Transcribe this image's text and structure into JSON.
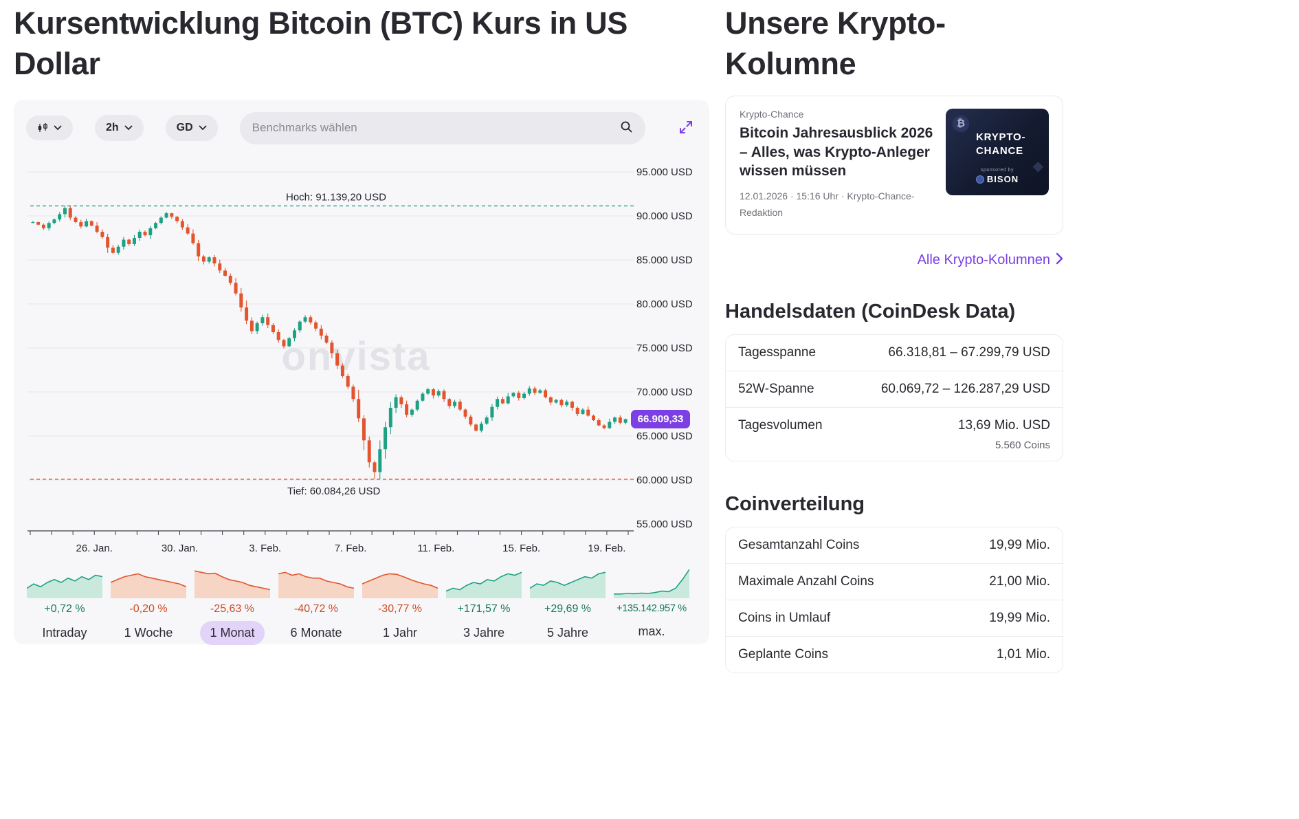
{
  "page": {
    "title": "Kursentwicklung Bitcoin (BTC) Kurs in US Dollar"
  },
  "toolbar": {
    "interval": "2h",
    "indicator": "GD",
    "search_placeholder": "Benchmarks wählen"
  },
  "chart_data": {
    "main": {
      "type": "candlestick",
      "currency": "USD",
      "watermark": "onvista",
      "ylim": [
        55000,
        95000
      ],
      "y_ticks": [
        {
          "value": 95000,
          "label": "95.000 USD"
        },
        {
          "value": 90000,
          "label": "90.000 USD"
        },
        {
          "value": 85000,
          "label": "85.000 USD"
        },
        {
          "value": 80000,
          "label": "80.000 USD"
        },
        {
          "value": 75000,
          "label": "75.000 USD"
        },
        {
          "value": 70000,
          "label": "70.000 USD"
        },
        {
          "value": 65000,
          "label": "65.000 USD"
        },
        {
          "value": 60000,
          "label": "60.000 USD"
        },
        {
          "value": 55000,
          "label": "55.000 USD"
        }
      ],
      "days_span": 28,
      "x_ticks": [
        {
          "day": 3,
          "label": "26. Jan."
        },
        {
          "day": 7,
          "label": "30. Jan."
        },
        {
          "day": 11,
          "label": "3. Feb."
        },
        {
          "day": 15,
          "label": "7. Feb."
        },
        {
          "day": 19,
          "label": "11. Feb."
        },
        {
          "day": 23,
          "label": "15. Feb."
        },
        {
          "day": 27,
          "label": "19. Feb."
        }
      ],
      "high": {
        "value": 91139.2,
        "label": "Hoch: 91.139,20 USD"
      },
      "low": {
        "value": 60084.26,
        "label": "Tief: 60.084,26 USD"
      },
      "last": {
        "value": 66909.33,
        "label": "66.909,33"
      },
      "closes": [
        89300,
        89000,
        88600,
        89200,
        89600,
        90200,
        90900,
        89800,
        89300,
        88800,
        89400,
        88900,
        88200,
        87600,
        86400,
        85800,
        86500,
        87300,
        86800,
        87500,
        88200,
        87800,
        88600,
        89200,
        89800,
        90300,
        89900,
        89400,
        88700,
        88000,
        86900,
        85400,
        84800,
        85300,
        84600,
        83800,
        83200,
        82400,
        81200,
        79600,
        78100,
        76900,
        77800,
        78500,
        77600,
        76800,
        75900,
        75200,
        76100,
        77000,
        78000,
        78500,
        77900,
        77200,
        76400,
        75600,
        74400,
        73000,
        71800,
        70600,
        69200,
        67000,
        64500,
        62000,
        60900,
        63500,
        66000,
        68200,
        69400,
        68600,
        67400,
        68000,
        69000,
        69800,
        70300,
        69600,
        70100,
        69200,
        68400,
        68900,
        68000,
        67200,
        66300,
        65600,
        66400,
        67100,
        68300,
        69200,
        68700,
        69500,
        69900,
        69300,
        69800,
        70400,
        69900,
        70200,
        69400,
        68800,
        69100,
        68500,
        68900,
        68200,
        67500,
        68000,
        67300,
        66800,
        66200,
        65900,
        66600,
        67100,
        66500,
        66909.33
      ],
      "colors": {
        "up": "#1ea183",
        "down": "#e2552e",
        "accent": "#7b3fe4"
      }
    },
    "ranges": {
      "type": "area-sparklines",
      "items": [
        {
          "label": "Intraday",
          "change": "+0,72 %",
          "dir": "up",
          "selected": false,
          "spark": [
            0.3,
            0.45,
            0.35,
            0.5,
            0.6,
            0.5,
            0.65,
            0.55,
            0.7,
            0.6,
            0.75,
            0.7
          ]
        },
        {
          "label": "1 Woche",
          "change": "-0,20 %",
          "dir": "down",
          "selected": false,
          "spark": [
            0.5,
            0.6,
            0.7,
            0.75,
            0.8,
            0.7,
            0.65,
            0.6,
            0.55,
            0.5,
            0.45,
            0.35
          ]
        },
        {
          "label": "1 Monat",
          "change": "-25,63 %",
          "dir": "down",
          "selected": true,
          "spark": [
            0.9,
            0.85,
            0.8,
            0.82,
            0.7,
            0.6,
            0.55,
            0.5,
            0.4,
            0.35,
            0.3,
            0.25
          ]
        },
        {
          "label": "6 Monate",
          "change": "-40,72 %",
          "dir": "down",
          "selected": false,
          "spark": [
            0.8,
            0.85,
            0.75,
            0.8,
            0.7,
            0.65,
            0.65,
            0.55,
            0.5,
            0.45,
            0.35,
            0.3
          ]
        },
        {
          "label": "1 Jahr",
          "change": "-30,77 %",
          "dir": "down",
          "selected": false,
          "spark": [
            0.45,
            0.55,
            0.65,
            0.75,
            0.8,
            0.78,
            0.7,
            0.6,
            0.52,
            0.45,
            0.4,
            0.3
          ]
        },
        {
          "label": "3 Jahre",
          "change": "+171,57 %",
          "dir": "up",
          "selected": false,
          "spark": [
            0.2,
            0.3,
            0.25,
            0.4,
            0.5,
            0.45,
            0.6,
            0.55,
            0.7,
            0.8,
            0.75,
            0.85
          ]
        },
        {
          "label": "5 Jahre",
          "change": "+29,69 %",
          "dir": "up",
          "selected": false,
          "spark": [
            0.3,
            0.45,
            0.4,
            0.55,
            0.5,
            0.4,
            0.5,
            0.6,
            0.7,
            0.65,
            0.8,
            0.85
          ]
        },
        {
          "label": "max.",
          "change": "+135.142.957 %",
          "dir": "up",
          "selected": false,
          "spark": [
            0.1,
            0.1,
            0.12,
            0.11,
            0.13,
            0.12,
            0.15,
            0.2,
            0.18,
            0.3,
            0.6,
            0.95
          ]
        }
      ]
    }
  },
  "column": {
    "heading": "Unsere Krypto-Kolumne",
    "article": {
      "kicker": "Krypto-Chance",
      "headline": "Bitcoin Jahresausblick 2026 – Alles, was Krypto-Anleger wissen müssen",
      "meta": "12.01.2026 · 15:16 Uhr · Krypto-Chance-Redaktion",
      "thumb": {
        "btc_symbol": "₿",
        "title1": "KRYPTO-",
        "title2": "CHANCE",
        "sponsored": "sponsored by",
        "brand": "BISON"
      }
    },
    "link_label": "Alle Krypto-Kolumnen"
  },
  "handelsdaten": {
    "title": "Handelsdaten (CoinDesk Data)",
    "rows": [
      {
        "label": "Tagesspanne",
        "value": "66.318,81 – 67.299,79 USD"
      },
      {
        "label": "52W-Spanne",
        "value": "60.069,72 – 126.287,29 USD"
      },
      {
        "label": "Tagesvolumen",
        "value": "13,69 Mio. USD",
        "sub": "5.560 Coins"
      }
    ]
  },
  "coinverteilung": {
    "title": "Coinverteilung",
    "rows": [
      {
        "label": "Gesamtanzahl Coins",
        "value": "19,99 Mio."
      },
      {
        "label": "Maximale Anzahl Coins",
        "value": "21,00 Mio."
      },
      {
        "label": "Coins in Umlauf",
        "value": "19,99 Mio."
      },
      {
        "label": "Geplante Coins",
        "value": "1,01 Mio."
      }
    ]
  }
}
